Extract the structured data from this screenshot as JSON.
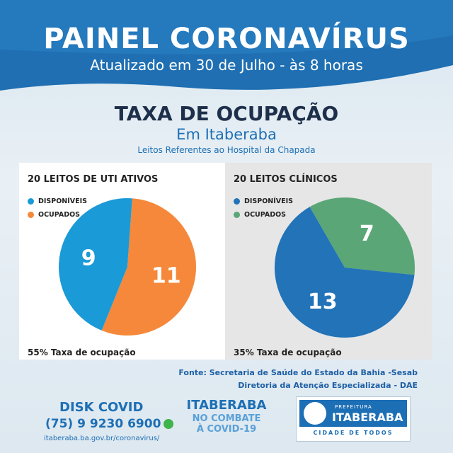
{
  "header": {
    "title": "PAINEL CORONAVÍRUS",
    "subtitle": "Atualizado em 30 de Julho - às 8 horas"
  },
  "section": {
    "title": "TAXA DE OCUPAÇÃO",
    "place": "Em Itaberaba",
    "note": "Leitos Referentes ao Hospital da Chapada"
  },
  "chart_data": [
    {
      "type": "pie",
      "title": "20 LEITOS DE UTI ATIVOS",
      "legend": "top-left",
      "slices": [
        {
          "label": "DISPONÍVEIS",
          "value": 9,
          "display": "9",
          "color": "#1a9ad6"
        },
        {
          "label": "OCUPADOS",
          "value": 11,
          "display": "11",
          "color": "#f5883a"
        }
      ],
      "annotation": "55% Taxa de ocupação"
    },
    {
      "type": "pie",
      "title": "20 LEITOS CLÍNICOS",
      "legend": "top-left",
      "slices": [
        {
          "label": "DISPONÍVEIS",
          "value": 13,
          "display": "13",
          "color": "#2273b8"
        },
        {
          "label": "OCUPADOS",
          "value": 7,
          "display": "7",
          "color": "#5aa677"
        }
      ],
      "annotation": "35% Taxa de ocupação"
    }
  ],
  "source": {
    "line1": "Fonte: Secretaria de Saúde do Estado da Bahia -Sesab",
    "line2": "Diretoria da Atenção Especializada - DAE"
  },
  "footer": {
    "disk_title": "DISK COVID",
    "phone": "(75) 9 9230 6900",
    "url": "itaberaba.ba.gov.br/coronavirus/",
    "campaign_city": "ITABERABA",
    "campaign_line1": "NO COMBATE",
    "campaign_line2": "À COVID-19",
    "logo_small": "PREFEITURA",
    "logo_big": "ITABERABA",
    "logo_tagline": "CIDADE DE TODOS"
  },
  "icons": {
    "whatsapp": "whatsapp-icon",
    "seal": "city-seal-icon"
  }
}
